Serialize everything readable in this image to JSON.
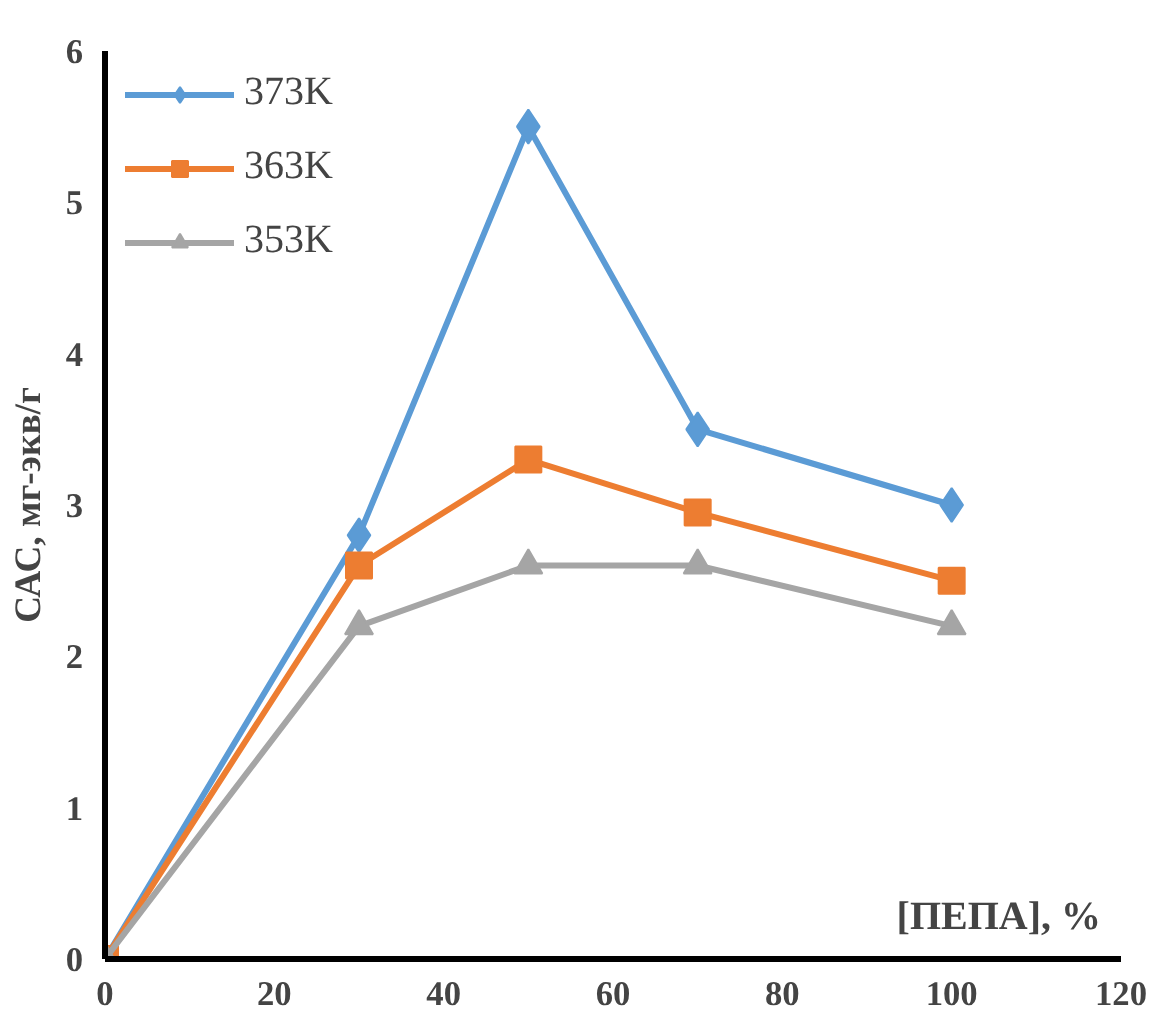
{
  "chart_data": {
    "type": "line",
    "x": [
      0,
      30,
      50,
      70,
      100
    ],
    "xlabel": "[ПЕПА], %",
    "ylabel": "САС, мг-экв/г",
    "series": [
      {
        "name": "373K",
        "color": "#5b9bd5",
        "marker": "diamond",
        "values": [
          0,
          2.8,
          5.5,
          3.5,
          3.0
        ]
      },
      {
        "name": "363K",
        "color": "#ed7d31",
        "marker": "square",
        "values": [
          0,
          2.6,
          3.3,
          2.95,
          2.5
        ]
      },
      {
        "name": "353K",
        "color": "#a5a5a5",
        "marker": "triangle",
        "values": [
          0,
          2.2,
          2.6,
          2.6,
          2.2
        ]
      }
    ],
    "xlim": [
      0,
      120
    ],
    "xticks": [
      0,
      20,
      40,
      60,
      80,
      100,
      120
    ],
    "ylim": [
      0,
      6
    ],
    "yticks": [
      0,
      1,
      2,
      3,
      4,
      5,
      6
    ],
    "grid": false,
    "legend": "top left"
  }
}
